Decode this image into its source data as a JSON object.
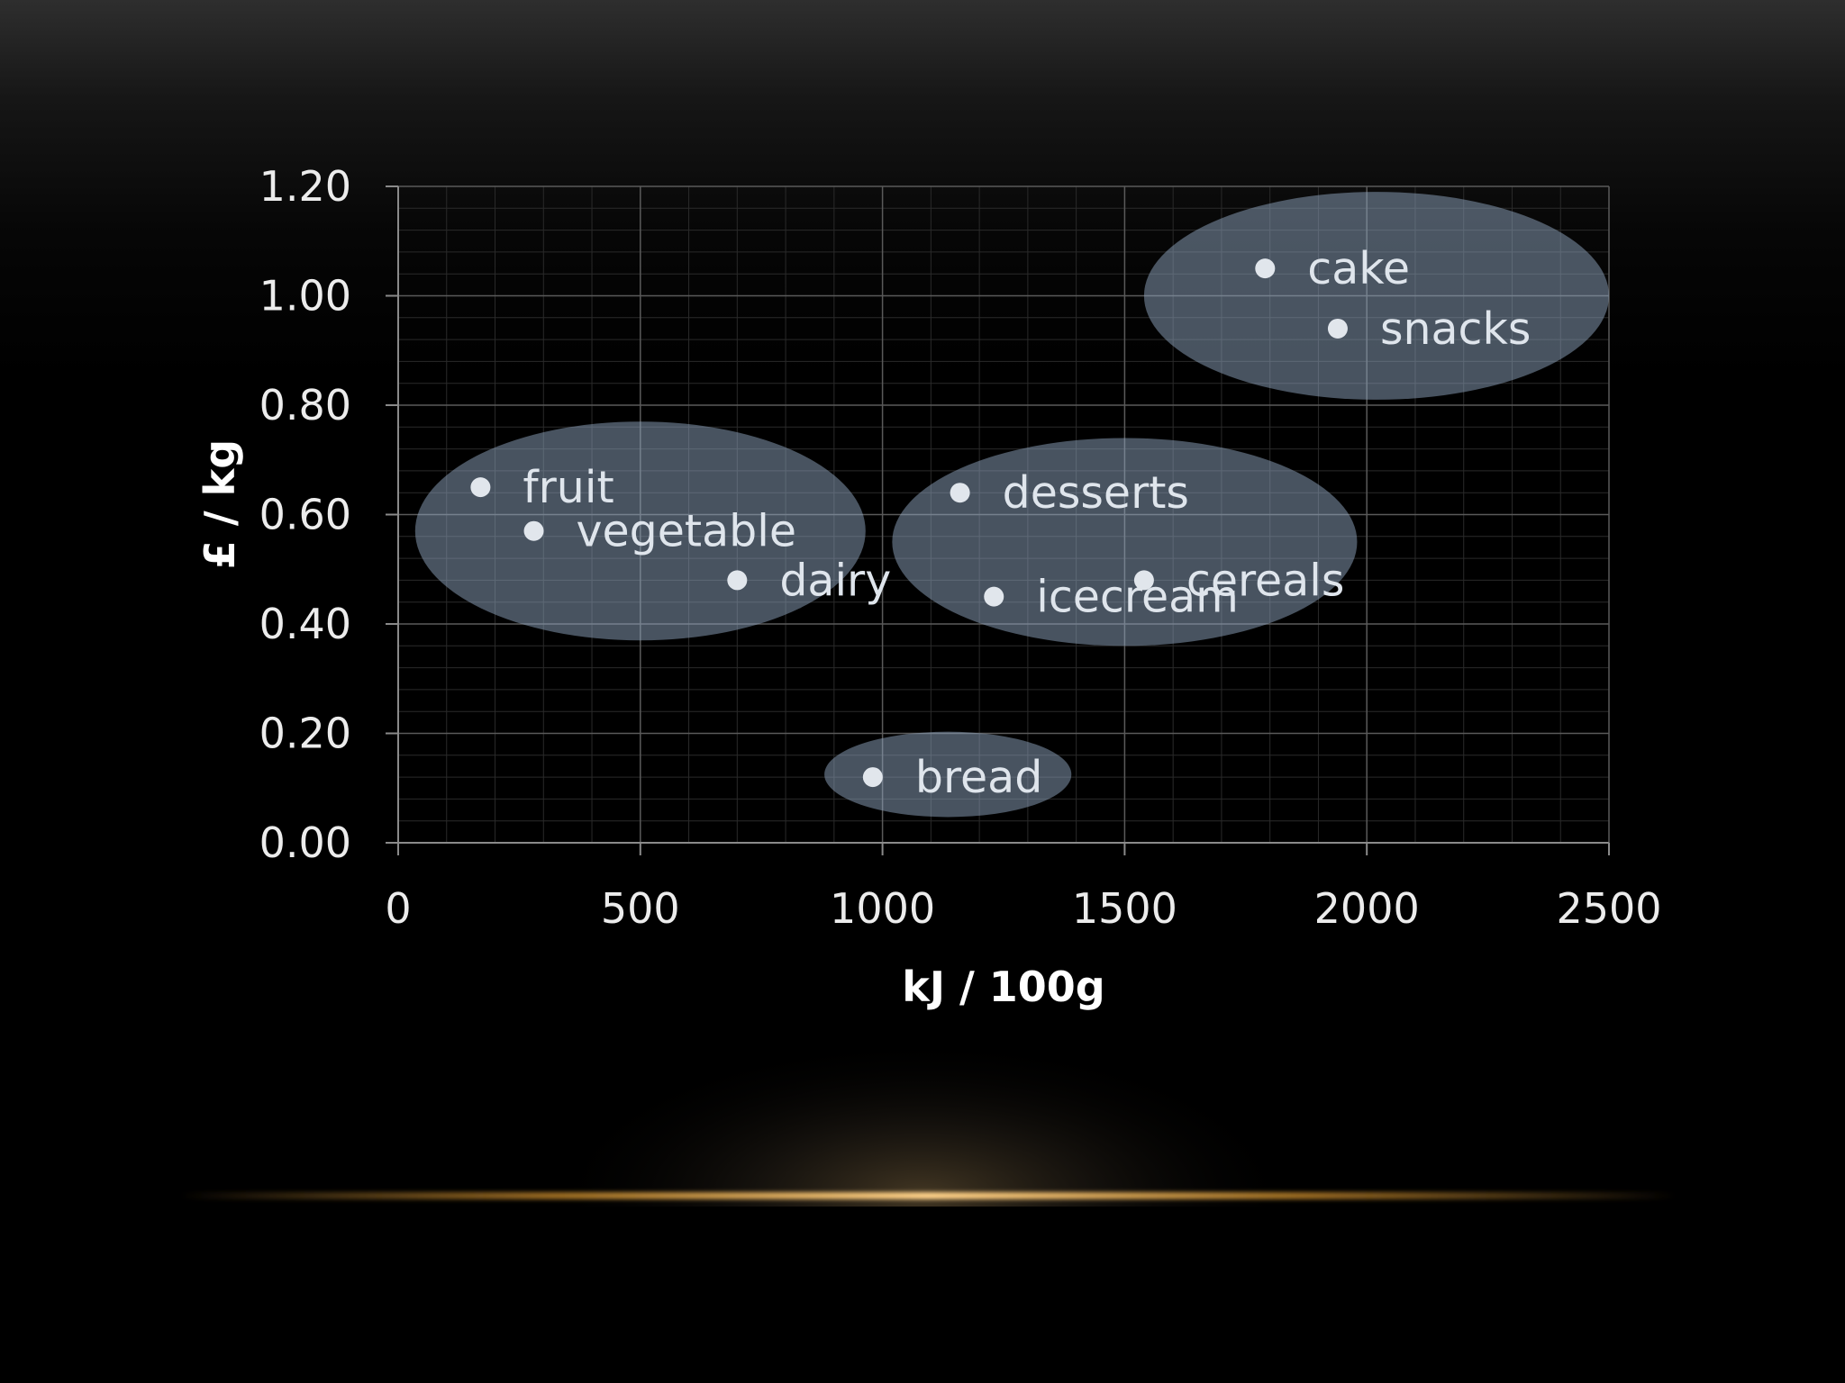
{
  "chart_data": {
    "type": "scatter",
    "title": "",
    "xlabel": "kJ / 100g",
    "ylabel": "£ / kg",
    "xlim": [
      0,
      2500
    ],
    "ylim": [
      0,
      1.2
    ],
    "x_ticks": [
      "0",
      "500",
      "1000",
      "1500",
      "2000",
      "2500"
    ],
    "y_ticks": [
      "0.00",
      "0.20",
      "0.40",
      "0.60",
      "0.80",
      "1.00",
      "1.20"
    ],
    "grid": true,
    "minor_grid": true,
    "legend": "none",
    "points": [
      {
        "label": "fruit",
        "x": 170,
        "y": 0.65
      },
      {
        "label": "vegetable",
        "x": 280,
        "y": 0.57
      },
      {
        "label": "dairy",
        "x": 700,
        "y": 0.48
      },
      {
        "label": "desserts",
        "x": 1160,
        "y": 0.64
      },
      {
        "label": "icecream",
        "x": 1230,
        "y": 0.45
      },
      {
        "label": "cereals",
        "x": 1540,
        "y": 0.48
      },
      {
        "label": "cake",
        "x": 1790,
        "y": 1.05
      },
      {
        "label": "snacks",
        "x": 1940,
        "y": 0.94
      },
      {
        "label": "bread",
        "x": 980,
        "y": 0.12
      }
    ],
    "groups": [
      {
        "name": "fruit, vegetable, dairy",
        "cx": 500,
        "cy": 0.57,
        "rx": 465,
        "ry": 0.2
      },
      {
        "name": "desserts, icecream, cereals",
        "cx": 1500,
        "cy": 0.55,
        "rx": 480,
        "ry": 0.19
      },
      {
        "name": "cake, snacks",
        "cx": 2020,
        "cy": 1.0,
        "rx": 480,
        "ry": 0.19
      },
      {
        "name": "bread",
        "cx": 1135,
        "cy": 0.125,
        "rx": 255,
        "ry": 0.078
      }
    ],
    "colors": {
      "background": "#000000",
      "grid_major": "#5a5a5a",
      "grid_minor": "#2a2a2a",
      "ellipse_fill": "#8fa5bf",
      "marker": "#e1e6ec",
      "label": "#dfe5ec",
      "axis_title": "#ffffff",
      "glow": "#e8a640"
    }
  }
}
